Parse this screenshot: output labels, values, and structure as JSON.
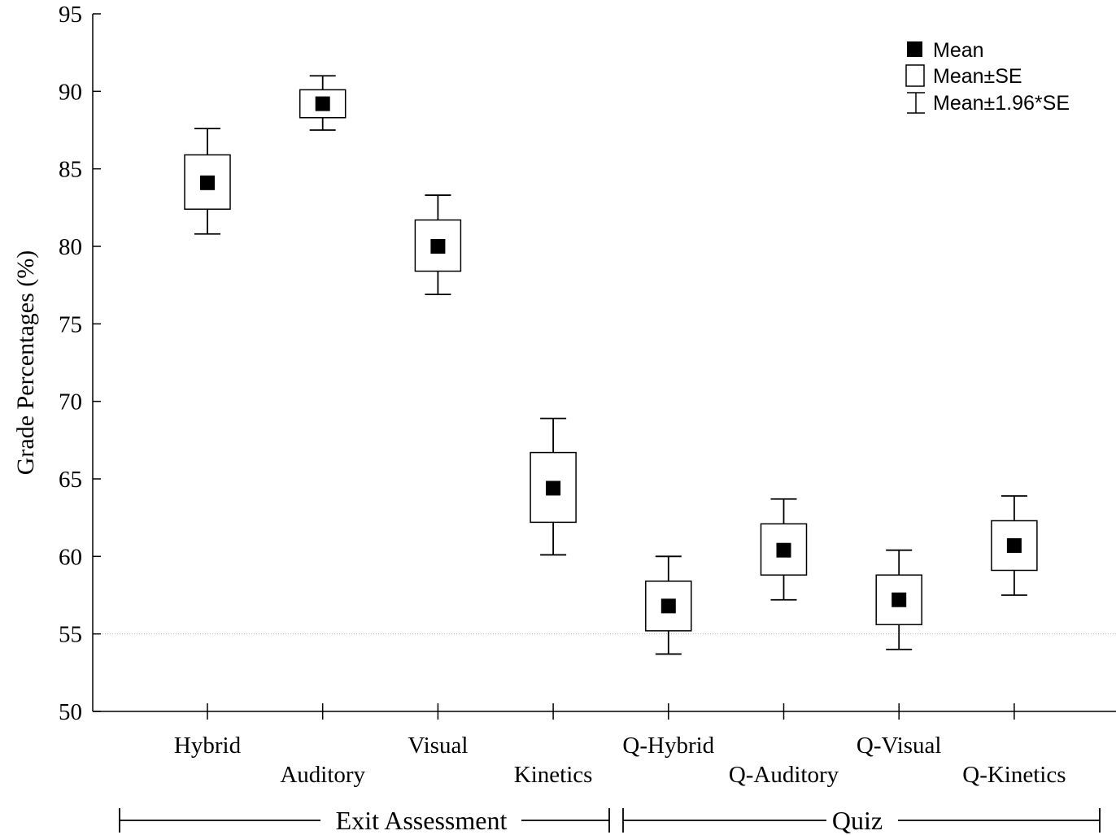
{
  "chart_data": {
    "type": "box",
    "title": "",
    "xlabel": "",
    "ylabel": "Grade Percentages (%)",
    "ylim": [
      50,
      95
    ],
    "yticks": [
      50,
      55,
      60,
      65,
      70,
      75,
      80,
      85,
      90,
      95
    ],
    "reference_line": 55,
    "categories": [
      "Hybrid",
      "Auditory",
      "Visual",
      "Kinetics",
      "Q-Hybrid",
      "Q-Auditory",
      "Q-Visual",
      "Q-Kinetics"
    ],
    "series": [
      {
        "name": "Mean",
        "values": [
          84.1,
          89.2,
          80.0,
          64.4,
          56.8,
          60.4,
          57.2,
          60.7
        ]
      },
      {
        "name": "Mean±SE",
        "values": [
          [
            82.4,
            85.9
          ],
          [
            88.3,
            90.1
          ],
          [
            78.4,
            81.7
          ],
          [
            62.2,
            66.7
          ],
          [
            55.2,
            58.4
          ],
          [
            58.8,
            62.1
          ],
          [
            55.6,
            58.8
          ],
          [
            59.1,
            62.3
          ]
        ]
      },
      {
        "name": "Mean±1.96*SE",
        "values": [
          [
            80.8,
            87.6
          ],
          [
            87.5,
            91.0
          ],
          [
            76.9,
            83.3
          ],
          [
            60.1,
            68.9
          ],
          [
            53.7,
            60.0
          ],
          [
            57.2,
            63.7
          ],
          [
            54.0,
            60.4
          ],
          [
            57.5,
            63.9
          ]
        ]
      }
    ],
    "groups": [
      {
        "label": "Exit Assessment",
        "categories": [
          "Hybrid",
          "Auditory",
          "Visual",
          "Kinetics"
        ]
      },
      {
        "label": "Quiz",
        "categories": [
          "Q-Hybrid",
          "Q-Auditory",
          "Q-Visual",
          "Q-Kinetics"
        ]
      }
    ],
    "legend": {
      "placement": "top-right",
      "entries": [
        "Mean",
        "Mean±SE",
        "Mean±1.96*SE"
      ]
    }
  }
}
